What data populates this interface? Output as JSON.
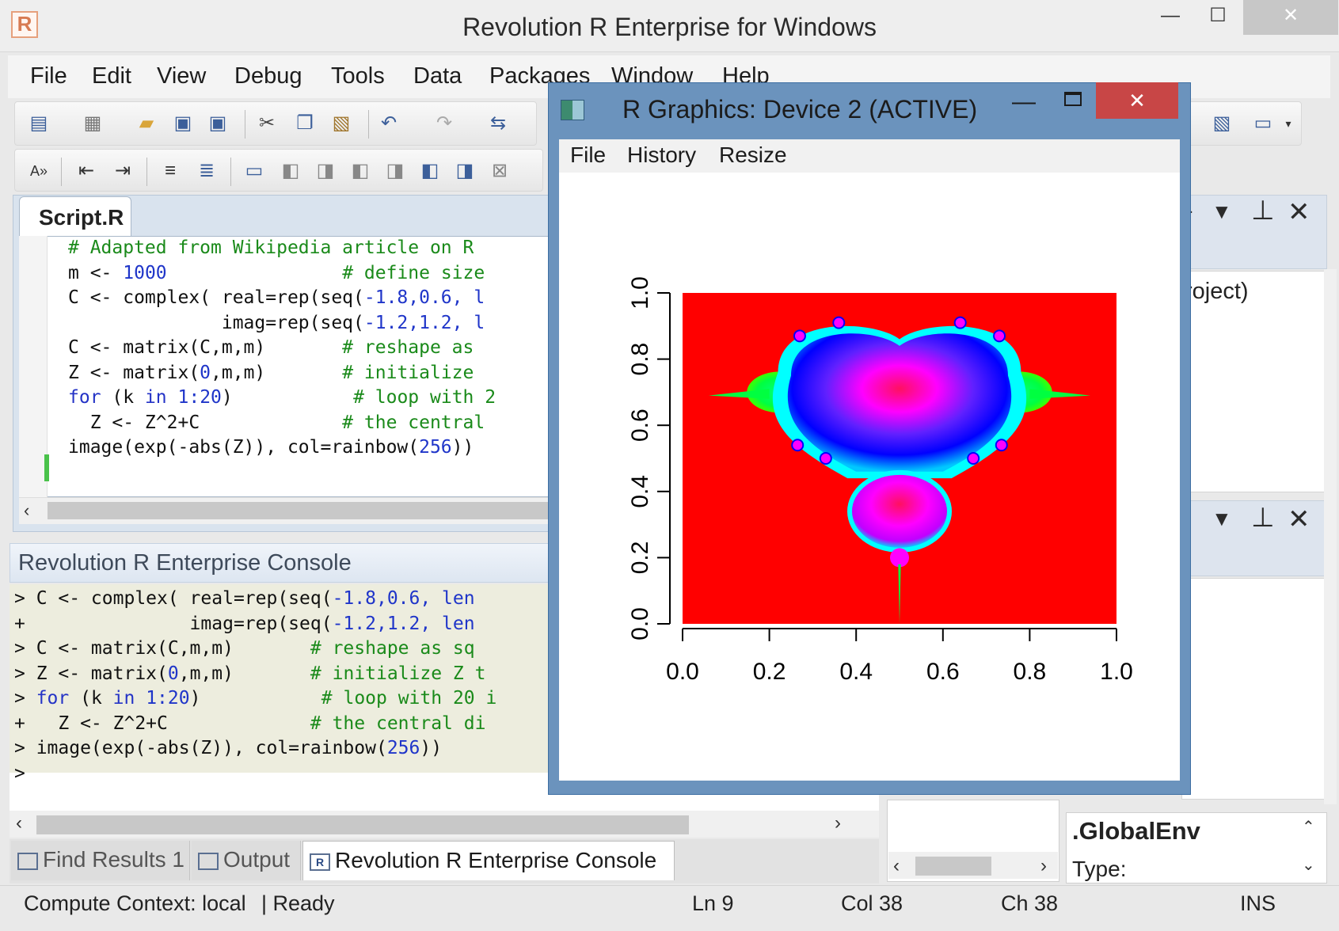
{
  "window": {
    "title": "Revolution R Enterprise for Windows",
    "icon": "R",
    "controls": {
      "minimize": "—",
      "maximize": "☐",
      "close": "✕"
    }
  },
  "menubar": [
    "File",
    "Edit",
    "View",
    "Debug",
    "Tools",
    "Data",
    "Packages",
    "Window",
    "Help"
  ],
  "toolbar": {
    "row1_icons": [
      "new-file-icon",
      "new-project-icon",
      "open-folder-icon",
      "save-icon",
      "save-all-icon",
      "cut-icon",
      "copy-icon",
      "paste-icon",
      "undo-icon",
      "redo-icon",
      "navigate-icon"
    ],
    "row2_icons": [
      "font-size-icon",
      "outdent-icon",
      "indent-icon",
      "comment-icon",
      "uncomment-icon",
      "bookmark-icon",
      "prev-bookmark-icon",
      "next-bookmark-icon",
      "prev-doc-bookmark-icon",
      "next-doc-bookmark-icon",
      "clear-bookmarks-icon"
    ]
  },
  "script": {
    "tab": "Script.R",
    "lines": [
      [
        {
          "t": "# Adapted from Wikipedia article on R",
          "c": "com"
        }
      ],
      [
        {
          "t": "m <- ",
          "c": "txt"
        },
        {
          "t": "1000",
          "c": "num"
        },
        {
          "t": "                # define size",
          "c": "com"
        }
      ],
      [
        {
          "t": "C <- complex( real=rep(seq(",
          "c": "txt"
        },
        {
          "t": "-1.8,0.6, l",
          "c": "num"
        }
      ],
      [
        {
          "t": "              imag=rep(seq(",
          "c": "txt"
        },
        {
          "t": "-1.2,1.2, l",
          "c": "num"
        }
      ],
      [
        {
          "t": "C <- matrix(C,m,m)",
          "c": "txt"
        },
        {
          "t": "       # reshape as",
          "c": "com"
        }
      ],
      [
        {
          "t": "Z <- matrix(",
          "c": "txt"
        },
        {
          "t": "0",
          "c": "num"
        },
        {
          "t": ",m,m)",
          "c": "txt"
        },
        {
          "t": "       # initialize",
          "c": "com"
        }
      ],
      [
        {
          "t": "for",
          "c": "kw"
        },
        {
          "t": " (k ",
          "c": "txt"
        },
        {
          "t": "in",
          "c": "kw"
        },
        {
          "t": " ",
          "c": "txt"
        },
        {
          "t": "1:20",
          "c": "num"
        },
        {
          "t": ")",
          "c": "txt"
        },
        {
          "t": "           # loop with 2",
          "c": "com"
        }
      ],
      [
        {
          "t": "  Z <- Z^2+C",
          "c": "txt"
        },
        {
          "t": "             # the central",
          "c": "com"
        }
      ],
      [
        {
          "t": "image(exp(-abs(Z)), col=rainbow(",
          "c": "txt"
        },
        {
          "t": "256",
          "c": "num"
        },
        {
          "t": "))",
          "c": "txt"
        }
      ]
    ]
  },
  "console": {
    "title": "Revolution R Enterprise Console",
    "lines": [
      [
        {
          "t": "> C <- complex( real=rep(seq(",
          "c": "txt"
        },
        {
          "t": "-1.8,0.6, len",
          "c": "num"
        }
      ],
      [
        {
          "t": "+               imag=rep(seq(",
          "c": "txt"
        },
        {
          "t": "-1.2,1.2, len",
          "c": "num"
        }
      ],
      [
        {
          "t": "> C <- matrix(C,m,m)",
          "c": "txt"
        },
        {
          "t": "       # reshape as sq",
          "c": "com"
        }
      ],
      [
        {
          "t": "> Z <- matrix(",
          "c": "txt"
        },
        {
          "t": "0",
          "c": "num"
        },
        {
          "t": ",m,m)",
          "c": "txt"
        },
        {
          "t": "       # initialize Z t",
          "c": "com"
        }
      ],
      [
        {
          "t": "> ",
          "c": "txt"
        },
        {
          "t": "for",
          "c": "kw"
        },
        {
          "t": " (k ",
          "c": "txt"
        },
        {
          "t": "in",
          "c": "kw"
        },
        {
          "t": " ",
          "c": "txt"
        },
        {
          "t": "1:20",
          "c": "num"
        },
        {
          "t": ")",
          "c": "txt"
        },
        {
          "t": "           # loop with 20 i",
          "c": "com"
        }
      ],
      [
        {
          "t": "+   Z <- Z^2+C",
          "c": "txt"
        },
        {
          "t": "             # the central di",
          "c": "com"
        }
      ],
      [
        {
          "t": "> image(exp(-abs(Z)), col=rainbow(",
          "c": "txt"
        },
        {
          "t": "256",
          "c": "num"
        },
        {
          "t": "))",
          "c": "txt"
        }
      ],
      [
        {
          "t": ">",
          "c": "txt"
        }
      ]
    ]
  },
  "bottom_tabs": [
    {
      "label": "Find Results 1",
      "icon": "find-results-icon",
      "active": false
    },
    {
      "label": "Output",
      "icon": "output-icon",
      "active": false
    },
    {
      "label": "Revolution R Enterprise Console",
      "icon": "r-console-icon",
      "active": true
    }
  ],
  "status": {
    "context": "Compute Context: local",
    "state": "| Ready",
    "line": "Ln 9",
    "col": "Col 38",
    "ch": "Ch 38",
    "mode": "INS"
  },
  "right_panels": {
    "project_text": "roject)",
    "env_name": ".GlobalEnv",
    "env_type": "Type:"
  },
  "graphics_window": {
    "title": "R Graphics: Device 2 (ACTIVE)",
    "menu": [
      "File",
      "History",
      "Resize"
    ],
    "colors": {
      "background": "#ff0000",
      "set_outer": "#00ff40",
      "set_mid": "#00ffff",
      "set_inner": "#0000ff",
      "set_core": "#ff00ff"
    }
  },
  "chart_data": {
    "type": "heatmap",
    "title": "",
    "xlabel": "",
    "ylabel": "",
    "xlim": [
      0,
      1
    ],
    "ylim": [
      0,
      1
    ],
    "x_ticks": [
      "0.0",
      "0.2",
      "0.4",
      "0.6",
      "0.8",
      "1.0"
    ],
    "y_ticks": [
      "0.0",
      "0.2",
      "0.4",
      "0.6",
      "0.8",
      "1.0"
    ],
    "colormap": "rainbow(256)",
    "grid": false
  }
}
